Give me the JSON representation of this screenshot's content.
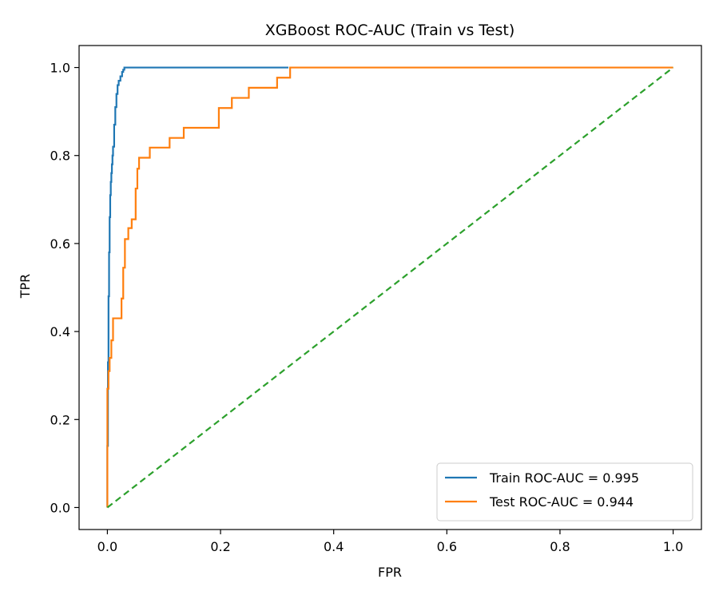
{
  "chart_data": {
    "type": "line",
    "title": "XGBoost ROC-AUC (Train vs Test)",
    "xlabel": "FPR",
    "ylabel": "TPR",
    "xlim": [
      -0.05,
      1.05
    ],
    "ylim": [
      -0.05,
      1.05
    ],
    "xticks": [
      0.0,
      0.2,
      0.4,
      0.6,
      0.8,
      1.0
    ],
    "xtick_labels": [
      "0.0",
      "0.2",
      "0.4",
      "0.6",
      "0.8",
      "1.0"
    ],
    "yticks": [
      0.0,
      0.2,
      0.4,
      0.6,
      0.8,
      1.0
    ],
    "ytick_labels": [
      "0.0",
      "0.2",
      "0.4",
      "0.6",
      "0.8",
      "1.0"
    ],
    "grid": false,
    "legend_position": "lower-right",
    "series": [
      {
        "name": "Train ROC-AUC = 0.995",
        "color": "#1f77b4",
        "style": "solid",
        "x": [
          0,
          0,
          0.001,
          0.001,
          0.002,
          0.002,
          0.003,
          0.003,
          0.004,
          0.004,
          0.005,
          0.005,
          0.006,
          0.006,
          0.007,
          0.007,
          0.008,
          0.008,
          0.009,
          0.009,
          0.01,
          0.01,
          0.012,
          0.012,
          0.014,
          0.014,
          0.016,
          0.016,
          0.018,
          0.018,
          0.02,
          0.02,
          0.023,
          0.023,
          0.026,
          0.026,
          0.028,
          0.028,
          0.03,
          0.03,
          0.32
        ],
        "y": [
          0,
          0.14,
          0.14,
          0.33,
          0.33,
          0.48,
          0.48,
          0.58,
          0.58,
          0.66,
          0.66,
          0.71,
          0.71,
          0.74,
          0.74,
          0.76,
          0.76,
          0.78,
          0.78,
          0.8,
          0.8,
          0.82,
          0.82,
          0.87,
          0.87,
          0.91,
          0.91,
          0.94,
          0.94,
          0.96,
          0.96,
          0.97,
          0.97,
          0.98,
          0.98,
          0.99,
          0.99,
          0.995,
          0.995,
          1.0,
          1.0
        ]
      },
      {
        "name": "Test ROC-AUC = 0.944",
        "color": "#ff7f0e",
        "style": "solid",
        "x": [
          0,
          0,
          0.002,
          0.002,
          0.004,
          0.004,
          0.007,
          0.007,
          0.01,
          0.01,
          0.025,
          0.025,
          0.028,
          0.028,
          0.031,
          0.031,
          0.037,
          0.037,
          0.043,
          0.043,
          0.05,
          0.05,
          0.053,
          0.053,
          0.056,
          0.056,
          0.06,
          0.06,
          0.075,
          0.075,
          0.11,
          0.11,
          0.135,
          0.135,
          0.197,
          0.197,
          0.22,
          0.22,
          0.25,
          0.25,
          0.3,
          0.3,
          0.323,
          0.323,
          1.0
        ],
        "y": [
          0,
          0.27,
          0.27,
          0.31,
          0.31,
          0.34,
          0.34,
          0.38,
          0.38,
          0.43,
          0.43,
          0.475,
          0.475,
          0.545,
          0.545,
          0.61,
          0.61,
          0.635,
          0.635,
          0.655,
          0.655,
          0.725,
          0.725,
          0.77,
          0.77,
          0.795,
          0.795,
          0.795,
          0.795,
          0.818,
          0.818,
          0.84,
          0.84,
          0.863,
          0.863,
          0.908,
          0.908,
          0.931,
          0.931,
          0.954,
          0.954,
          0.977,
          0.977,
          1.0,
          1.0
        ]
      },
      {
        "name": "",
        "color": "#2ca02c",
        "style": "dashed",
        "x": [
          0,
          1
        ],
        "y": [
          0,
          1
        ]
      }
    ]
  }
}
